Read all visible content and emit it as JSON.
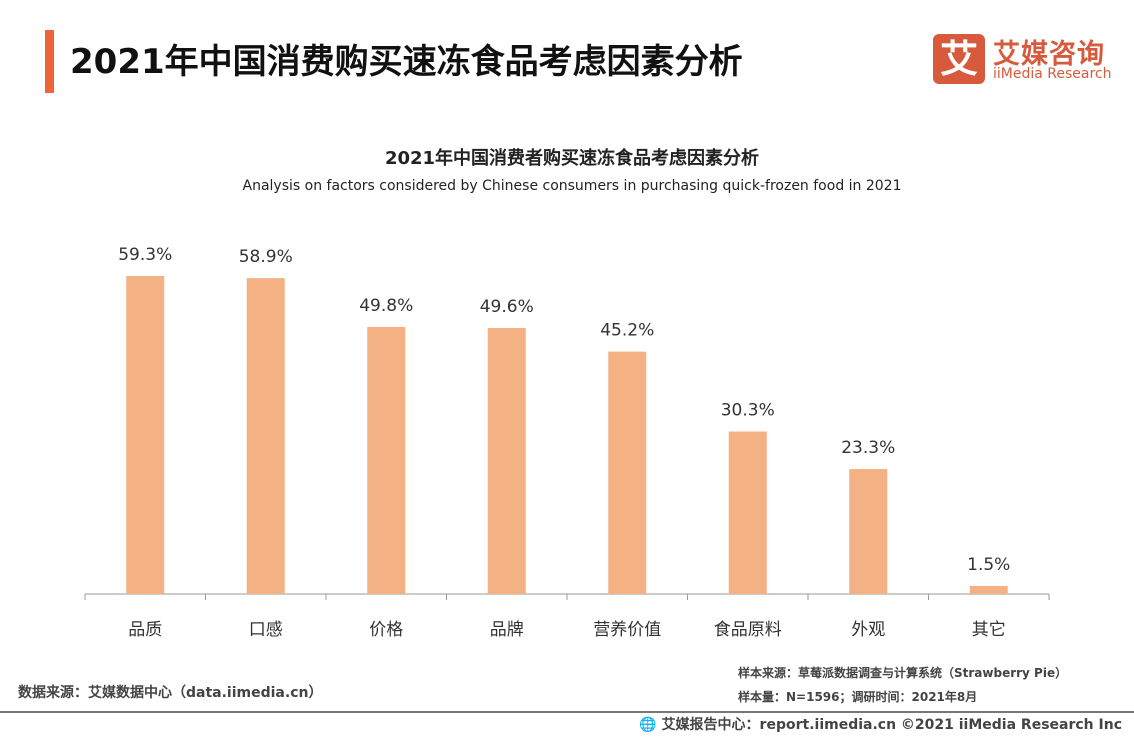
{
  "header": {
    "title": "2021年中国消费购买速冻食品考虑因素分析"
  },
  "logo": {
    "icon_text": "艾",
    "cn": "艾媒咨询",
    "en": "iiMedia Research"
  },
  "chart_data": {
    "type": "bar",
    "title": "2021年中国消费者购买速冻食品考虑因素分析",
    "subtitle": "Analysis on factors considered by Chinese consumers in purchasing quick-frozen food in 2021",
    "categories": [
      "品质",
      "口感",
      "价格",
      "品牌",
      "营养价值",
      "食品原料",
      "外观",
      "其它"
    ],
    "values": [
      59.3,
      58.9,
      49.8,
      49.6,
      45.2,
      30.3,
      23.3,
      1.5
    ],
    "labels": [
      "59.3%",
      "58.9%",
      "49.8%",
      "49.6%",
      "45.2%",
      "30.3%",
      "23.3%",
      "1.5%"
    ],
    "unit": "%",
    "bar_color": "#f4b183",
    "grid": false,
    "ylim": [
      0,
      60
    ]
  },
  "footer": {
    "source_left": "数据来源：艾媒数据中心（data.iimedia.cn）",
    "sample_source": "样本来源：草莓派数据调查与计算系统（Strawberry Pie）",
    "sample_size": "样本量：N=1596；调研时间：2021年8月",
    "report": "艾媒报告中心：report.iimedia.cn   ©2021  iiMedia Research  Inc",
    "globe_icon": "globe-icon"
  }
}
